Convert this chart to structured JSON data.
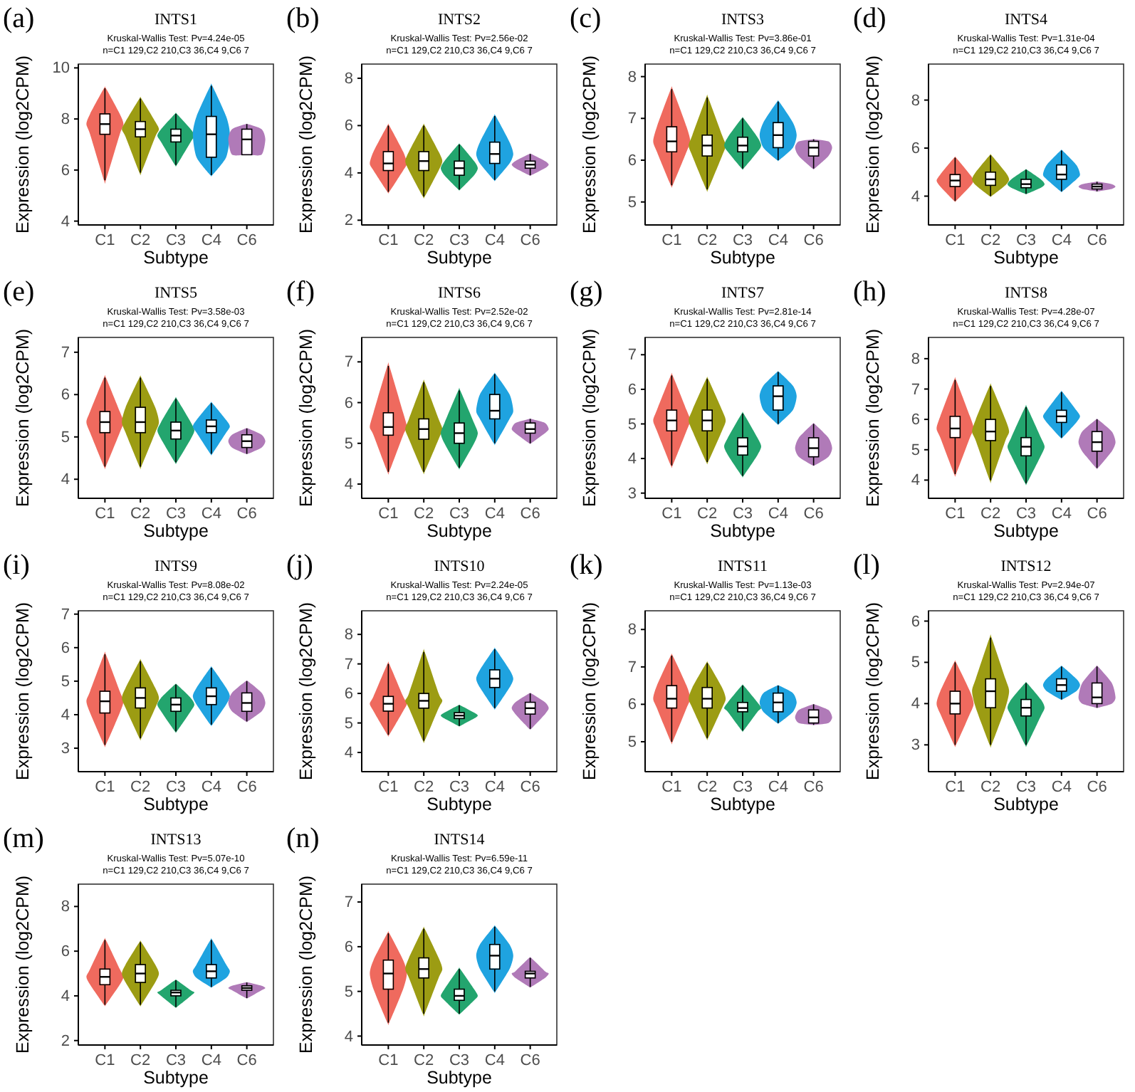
{
  "chart_data": [
    {
      "type": "box",
      "title": "INTS1",
      "subtitle": "Kruskal-Wallis Test: Pv=4.24e-05\nn=C1 129,C2 210,C3 36,C4 9,C6 7",
      "annotations": [
        "(a)"
      ],
      "xlabel": "Subtype",
      "ylabel": "Expression (log2CPM)",
      "categories": [
        "C1",
        "C2",
        "C3",
        "C4",
        "C6"
      ],
      "colors": [
        "#ef6a5e",
        "#9c9c13",
        "#23a56e",
        "#1fa3e0",
        "#b07ab8"
      ],
      "ylim": [
        3.85,
        10.15
      ],
      "yticks": [
        4,
        6,
        8,
        10
      ],
      "boxes": [
        {
          "low": 5.6,
          "q1": 7.4,
          "median": 7.8,
          "q3": 8.2,
          "high": 9.2
        },
        {
          "low": 5.9,
          "q1": 7.3,
          "median": 7.6,
          "q3": 7.9,
          "high": 8.8
        },
        {
          "low": 6.2,
          "q1": 7.1,
          "median": 7.35,
          "q3": 7.6,
          "high": 8.2
        },
        {
          "low": 5.8,
          "q1": 6.5,
          "median": 7.4,
          "q3": 8.1,
          "high": 9.3
        },
        {
          "low": 6.6,
          "q1": 6.6,
          "median": 7.2,
          "q3": 7.6,
          "high": 7.8
        }
      ]
    },
    {
      "type": "box",
      "title": "INTS2",
      "subtitle": "Kruskal-Wallis Test: Pv=2.56e-02\nn=C1 129,C2 210,C3 36,C4 9,C6 7",
      "annotations": [
        "(b)"
      ],
      "xlabel": "Subtype",
      "ylabel": "Expression (log2CPM)",
      "categories": [
        "C1",
        "C2",
        "C3",
        "C4",
        "C6"
      ],
      "colors": [
        "#ef6a5e",
        "#9c9c13",
        "#23a56e",
        "#1fa3e0",
        "#b07ab8"
      ],
      "ylim": [
        1.8,
        8.6
      ],
      "yticks": [
        2,
        4,
        6,
        8
      ],
      "boxes": [
        {
          "low": 3.2,
          "q1": 4.1,
          "median": 4.4,
          "q3": 4.9,
          "high": 6.0
        },
        {
          "low": 3.0,
          "q1": 4.1,
          "median": 4.5,
          "q3": 4.9,
          "high": 6.0
        },
        {
          "low": 3.3,
          "q1": 3.9,
          "median": 4.2,
          "q3": 4.5,
          "high": 5.2
        },
        {
          "low": 3.7,
          "q1": 4.4,
          "median": 4.8,
          "q3": 5.3,
          "high": 6.4
        },
        {
          "low": 3.9,
          "q1": 4.2,
          "median": 4.35,
          "q3": 4.5,
          "high": 4.8
        }
      ]
    },
    {
      "type": "box",
      "title": "INTS3",
      "subtitle": "Kruskal-Wallis Test: Pv=3.86e-01\nn=C1 129,C2 210,C3 36,C4 9,C6 7",
      "annotations": [
        "(c)"
      ],
      "xlabel": "Subtype",
      "ylabel": "Expression (log2CPM)",
      "categories": [
        "C1",
        "C2",
        "C3",
        "C4",
        "C6"
      ],
      "colors": [
        "#ef6a5e",
        "#9c9c13",
        "#23a56e",
        "#1fa3e0",
        "#b07ab8"
      ],
      "ylim": [
        4.45,
        8.3
      ],
      "yticks": [
        5,
        6,
        7,
        8
      ],
      "boxes": [
        {
          "low": 5.4,
          "q1": 6.2,
          "median": 6.45,
          "q3": 6.8,
          "high": 7.7
        },
        {
          "low": 5.3,
          "q1": 6.1,
          "median": 6.35,
          "q3": 6.6,
          "high": 7.5
        },
        {
          "low": 5.8,
          "q1": 6.2,
          "median": 6.35,
          "q3": 6.55,
          "high": 7.0
        },
        {
          "low": 6.0,
          "q1": 6.3,
          "median": 6.6,
          "q3": 6.9,
          "high": 7.4
        },
        {
          "low": 5.8,
          "q1": 6.1,
          "median": 6.3,
          "q3": 6.45,
          "high": 6.5
        }
      ]
    },
    {
      "type": "box",
      "title": "INTS4",
      "subtitle": "Kruskal-Wallis Test: Pv=1.31e-04\nn=C1 129,C2 210,C3 36,C4 9,C6 7",
      "annotations": [
        "(d)"
      ],
      "xlabel": "Subtype",
      "ylabel": "Expression (log2CPM)",
      "categories": [
        "C1",
        "C2",
        "C3",
        "C4",
        "C6"
      ],
      "colors": [
        "#ef6a5e",
        "#9c9c13",
        "#23a56e",
        "#1fa3e0",
        "#b07ab8"
      ],
      "ylim": [
        2.8,
        9.5
      ],
      "yticks": [
        4,
        6,
        8
      ],
      "boxes": [
        {
          "low": 3.8,
          "q1": 4.4,
          "median": 4.65,
          "q3": 4.9,
          "high": 5.6
        },
        {
          "low": 4.0,
          "q1": 4.45,
          "median": 4.7,
          "q3": 5.0,
          "high": 5.7
        },
        {
          "low": 4.1,
          "q1": 4.35,
          "median": 4.5,
          "q3": 4.7,
          "high": 5.1
        },
        {
          "low": 4.2,
          "q1": 4.7,
          "median": 4.9,
          "q3": 5.3,
          "high": 5.9
        },
        {
          "low": 4.2,
          "q1": 4.3,
          "median": 4.4,
          "q3": 4.5,
          "high": 4.6
        }
      ]
    },
    {
      "type": "box",
      "title": "INTS5",
      "subtitle": "Kruskal-Wallis Test: Pv=3.58e-03\nn=C1 129,C2 210,C3 36,C4 9,C6 7",
      "annotations": [
        "(e)"
      ],
      "xlabel": "Subtype",
      "ylabel": "Expression (log2CPM)",
      "categories": [
        "C1",
        "C2",
        "C3",
        "C4",
        "C6"
      ],
      "colors": [
        "#ef6a5e",
        "#9c9c13",
        "#23a56e",
        "#1fa3e0",
        "#b07ab8"
      ],
      "ylim": [
        3.55,
        7.35
      ],
      "yticks": [
        4,
        5,
        6,
        7
      ],
      "boxes": [
        {
          "low": 4.3,
          "q1": 5.1,
          "median": 5.35,
          "q3": 5.6,
          "high": 6.4
        },
        {
          "low": 4.3,
          "q1": 5.1,
          "median": 5.35,
          "q3": 5.7,
          "high": 6.4
        },
        {
          "low": 4.4,
          "q1": 4.95,
          "median": 5.15,
          "q3": 5.35,
          "high": 5.9
        },
        {
          "low": 4.6,
          "q1": 5.1,
          "median": 5.25,
          "q3": 5.4,
          "high": 5.8
        },
        {
          "low": 4.6,
          "q1": 4.75,
          "median": 4.9,
          "q3": 5.05,
          "high": 5.2
        }
      ]
    },
    {
      "type": "box",
      "title": "INTS6",
      "subtitle": "Kruskal-Wallis Test: Pv=2.52e-02\nn=C1 129,C2 210,C3 36,C4 9,C6 7",
      "annotations": [
        "(f)"
      ],
      "xlabel": "Subtype",
      "ylabel": "Expression (log2CPM)",
      "categories": [
        "C1",
        "C2",
        "C3",
        "C4",
        "C6"
      ],
      "colors": [
        "#ef6a5e",
        "#9c9c13",
        "#23a56e",
        "#1fa3e0",
        "#b07ab8"
      ],
      "ylim": [
        3.65,
        7.6
      ],
      "yticks": [
        4,
        5,
        6,
        7
      ],
      "boxes": [
        {
          "low": 4.3,
          "q1": 5.2,
          "median": 5.4,
          "q3": 5.75,
          "high": 6.9
        },
        {
          "low": 4.3,
          "q1": 5.1,
          "median": 5.35,
          "q3": 5.6,
          "high": 6.5
        },
        {
          "low": 4.4,
          "q1": 5.0,
          "median": 5.25,
          "q3": 5.5,
          "high": 6.3
        },
        {
          "low": 5.0,
          "q1": 5.6,
          "median": 5.8,
          "q3": 6.2,
          "high": 6.7
        },
        {
          "low": 5.0,
          "q1": 5.25,
          "median": 5.35,
          "q3": 5.5,
          "high": 5.6
        }
      ]
    },
    {
      "type": "box",
      "title": "INTS7",
      "subtitle": "Kruskal-Wallis Test: Pv=2.81e-14\nn=C1 129,C2 210,C3 36,C4 9,C6 7",
      "annotations": [
        "(g)"
      ],
      "xlabel": "Subtype",
      "ylabel": "Expression (log2CPM)",
      "categories": [
        "C1",
        "C2",
        "C3",
        "C4",
        "C6"
      ],
      "colors": [
        "#ef6a5e",
        "#9c9c13",
        "#23a56e",
        "#1fa3e0",
        "#b07ab8"
      ],
      "ylim": [
        2.85,
        7.5
      ],
      "yticks": [
        3,
        4,
        5,
        6,
        7
      ],
      "boxes": [
        {
          "low": 3.8,
          "q1": 4.8,
          "median": 5.1,
          "q3": 5.4,
          "high": 6.4
        },
        {
          "low": 3.9,
          "q1": 4.8,
          "median": 5.1,
          "q3": 5.4,
          "high": 6.3
        },
        {
          "low": 3.5,
          "q1": 4.1,
          "median": 4.35,
          "q3": 4.6,
          "high": 5.3
        },
        {
          "low": 5.0,
          "q1": 5.4,
          "median": 5.8,
          "q3": 6.1,
          "high": 6.5
        },
        {
          "low": 3.8,
          "q1": 4.05,
          "median": 4.3,
          "q3": 4.6,
          "high": 5.0
        }
      ]
    },
    {
      "type": "box",
      "title": "INTS8",
      "subtitle": "Kruskal-Wallis Test: Pv=4.28e-07\nn=C1 129,C2 210,C3 36,C4 9,C6 7",
      "annotations": [
        "(h)"
      ],
      "xlabel": "Subtype",
      "ylabel": "Expression (log2CPM)",
      "categories": [
        "C1",
        "C2",
        "C3",
        "C4",
        "C6"
      ],
      "colors": [
        "#ef6a5e",
        "#9c9c13",
        "#23a56e",
        "#1fa3e0",
        "#b07ab8"
      ],
      "ylim": [
        3.4,
        8.7
      ],
      "yticks": [
        4,
        5,
        6,
        7,
        8
      ],
      "boxes": [
        {
          "low": 4.2,
          "q1": 5.4,
          "median": 5.7,
          "q3": 6.1,
          "high": 7.3
        },
        {
          "low": 4.0,
          "q1": 5.3,
          "median": 5.6,
          "q3": 6.0,
          "high": 7.1
        },
        {
          "low": 3.9,
          "q1": 4.8,
          "median": 5.1,
          "q3": 5.4,
          "high": 6.4
        },
        {
          "low": 5.4,
          "q1": 5.9,
          "median": 6.1,
          "q3": 6.3,
          "high": 6.9
        },
        {
          "low": 4.4,
          "q1": 4.95,
          "median": 5.25,
          "q3": 5.6,
          "high": 6.0
        }
      ]
    },
    {
      "type": "box",
      "title": "INTS9",
      "subtitle": "Kruskal-Wallis Test: Pv=8.08e-02\nn=C1 129,C2 210,C3 36,C4 9,C6 7",
      "annotations": [
        "(i)"
      ],
      "xlabel": "Subtype",
      "ylabel": "Expression (log2CPM)",
      "categories": [
        "C1",
        "C2",
        "C3",
        "C4",
        "C6"
      ],
      "colors": [
        "#ef6a5e",
        "#9c9c13",
        "#23a56e",
        "#1fa3e0",
        "#b07ab8"
      ],
      "ylim": [
        2.3,
        7.1
      ],
      "yticks": [
        3,
        4,
        5,
        6,
        7
      ],
      "boxes": [
        {
          "low": 3.1,
          "q1": 4.05,
          "median": 4.4,
          "q3": 4.7,
          "high": 5.8
        },
        {
          "low": 3.3,
          "q1": 4.2,
          "median": 4.5,
          "q3": 4.8,
          "high": 5.6
        },
        {
          "low": 3.5,
          "q1": 4.1,
          "median": 4.3,
          "q3": 4.5,
          "high": 4.9
        },
        {
          "low": 3.7,
          "q1": 4.3,
          "median": 4.55,
          "q3": 4.8,
          "high": 5.4
        },
        {
          "low": 3.8,
          "q1": 4.1,
          "median": 4.35,
          "q3": 4.65,
          "high": 5.0
        }
      ]
    },
    {
      "type": "box",
      "title": "INTS10",
      "subtitle": "Kruskal-Wallis Test: Pv=2.24e-05\nn=C1 129,C2 210,C3 36,C4 9,C6 7",
      "annotations": [
        "(j)"
      ],
      "xlabel": "Subtype",
      "ylabel": "Expression (log2CPM)",
      "categories": [
        "C1",
        "C2",
        "C3",
        "C4",
        "C6"
      ],
      "colors": [
        "#ef6a5e",
        "#9c9c13",
        "#23a56e",
        "#1fa3e0",
        "#b07ab8"
      ],
      "ylim": [
        3.35,
        8.8
      ],
      "yticks": [
        4,
        5,
        6,
        7,
        8
      ],
      "boxes": [
        {
          "low": 4.6,
          "q1": 5.4,
          "median": 5.65,
          "q3": 5.9,
          "high": 7.0
        },
        {
          "low": 4.4,
          "q1": 5.5,
          "median": 5.75,
          "q3": 6.0,
          "high": 7.4
        },
        {
          "low": 4.9,
          "q1": 5.15,
          "median": 5.25,
          "q3": 5.35,
          "high": 5.6
        },
        {
          "low": 5.5,
          "q1": 6.2,
          "median": 6.5,
          "q3": 6.8,
          "high": 7.5
        },
        {
          "low": 4.8,
          "q1": 5.3,
          "median": 5.5,
          "q3": 5.7,
          "high": 6.0
        }
      ]
    },
    {
      "type": "box",
      "title": "INTS11",
      "subtitle": "Kruskal-Wallis Test: Pv=1.13e-03\nn=C1 129,C2 210,C3 36,C4 9,C6 7",
      "annotations": [
        "(k)"
      ],
      "xlabel": "Subtype",
      "ylabel": "Expression (log2CPM)",
      "categories": [
        "C1",
        "C2",
        "C3",
        "C4",
        "C6"
      ],
      "colors": [
        "#ef6a5e",
        "#9c9c13",
        "#23a56e",
        "#1fa3e0",
        "#b07ab8"
      ],
      "ylim": [
        4.2,
        8.5
      ],
      "yticks": [
        5,
        6,
        7,
        8
      ],
      "boxes": [
        {
          "low": 5.0,
          "q1": 5.9,
          "median": 6.15,
          "q3": 6.5,
          "high": 7.3
        },
        {
          "low": 5.1,
          "q1": 5.9,
          "median": 6.15,
          "q3": 6.45,
          "high": 7.1
        },
        {
          "low": 5.3,
          "q1": 5.8,
          "median": 5.9,
          "q3": 6.05,
          "high": 6.5
        },
        {
          "low": 5.5,
          "q1": 5.8,
          "median": 6.05,
          "q3": 6.3,
          "high": 6.5
        },
        {
          "low": 5.45,
          "q1": 5.5,
          "median": 5.65,
          "q3": 5.85,
          "high": 6.0
        }
      ]
    },
    {
      "type": "box",
      "title": "INTS12",
      "subtitle": "Kruskal-Wallis Test: Pv=2.94e-07\nn=C1 129,C2 210,C3 36,C4 9,C6 7",
      "annotations": [
        "(l)"
      ],
      "xlabel": "Subtype",
      "ylabel": "Expression (log2CPM)",
      "categories": [
        "C1",
        "C2",
        "C3",
        "C4",
        "C6"
      ],
      "colors": [
        "#ef6a5e",
        "#9c9c13",
        "#23a56e",
        "#1fa3e0",
        "#b07ab8"
      ],
      "ylim": [
        2.35,
        6.25
      ],
      "yticks": [
        3,
        4,
        5,
        6
      ],
      "boxes": [
        {
          "low": 3.0,
          "q1": 3.75,
          "median": 4.0,
          "q3": 4.3,
          "high": 5.0
        },
        {
          "low": 3.0,
          "q1": 3.9,
          "median": 4.3,
          "q3": 4.6,
          "high": 5.6
        },
        {
          "low": 3.0,
          "q1": 3.7,
          "median": 3.9,
          "q3": 4.1,
          "high": 4.5
        },
        {
          "low": 4.1,
          "q1": 4.3,
          "median": 4.45,
          "q3": 4.6,
          "high": 4.9
        },
        {
          "low": 3.9,
          "q1": 4.0,
          "median": 4.15,
          "q3": 4.5,
          "high": 4.9
        }
      ]
    },
    {
      "type": "box",
      "title": "INTS13",
      "subtitle": "Kruskal-Wallis Test: Pv=5.07e-10\nn=C1 129,C2 210,C3 36,C4 9,C6 7",
      "annotations": [
        "(m)"
      ],
      "xlabel": "Subtype",
      "ylabel": "Expression (log2CPM)",
      "categories": [
        "C1",
        "C2",
        "C3",
        "C4",
        "C6"
      ],
      "colors": [
        "#ef6a5e",
        "#9c9c13",
        "#23a56e",
        "#1fa3e0",
        "#b07ab8"
      ],
      "ylim": [
        1.8,
        9.0
      ],
      "yticks": [
        2,
        4,
        6,
        8
      ],
      "boxes": [
        {
          "low": 3.6,
          "q1": 4.5,
          "median": 4.85,
          "q3": 5.2,
          "high": 6.5
        },
        {
          "low": 3.6,
          "q1": 4.6,
          "median": 5.0,
          "q3": 5.4,
          "high": 6.4
        },
        {
          "low": 3.5,
          "q1": 4.0,
          "median": 4.15,
          "q3": 4.25,
          "high": 4.7
        },
        {
          "low": 4.4,
          "q1": 4.8,
          "median": 5.1,
          "q3": 5.4,
          "high": 6.5
        },
        {
          "low": 3.9,
          "q1": 4.25,
          "median": 4.35,
          "q3": 4.45,
          "high": 4.6
        }
      ]
    },
    {
      "type": "box",
      "title": "INTS14",
      "subtitle": "Kruskal-Wallis Test: Pv=6.59e-11\nn=C1 129,C2 210,C3 36,C4 9,C6 7",
      "annotations": [
        "(n)"
      ],
      "xlabel": "Subtype",
      "ylabel": "Expression (log2CPM)",
      "categories": [
        "C1",
        "C2",
        "C3",
        "C4",
        "C6"
      ],
      "colors": [
        "#ef6a5e",
        "#9c9c13",
        "#23a56e",
        "#1fa3e0",
        "#b07ab8"
      ],
      "ylim": [
        3.8,
        7.4
      ],
      "yticks": [
        4,
        5,
        6,
        7
      ],
      "boxes": [
        {
          "low": 4.3,
          "q1": 5.05,
          "median": 5.4,
          "q3": 5.7,
          "high": 6.3
        },
        {
          "low": 4.5,
          "q1": 5.3,
          "median": 5.5,
          "q3": 5.75,
          "high": 6.4
        },
        {
          "low": 4.5,
          "q1": 4.8,
          "median": 4.9,
          "q3": 5.05,
          "high": 5.5
        },
        {
          "low": 5.0,
          "q1": 5.5,
          "median": 5.8,
          "q3": 6.05,
          "high": 6.45
        },
        {
          "low": 5.1,
          "q1": 5.3,
          "median": 5.4,
          "q3": 5.45,
          "high": 5.75
        }
      ]
    }
  ]
}
